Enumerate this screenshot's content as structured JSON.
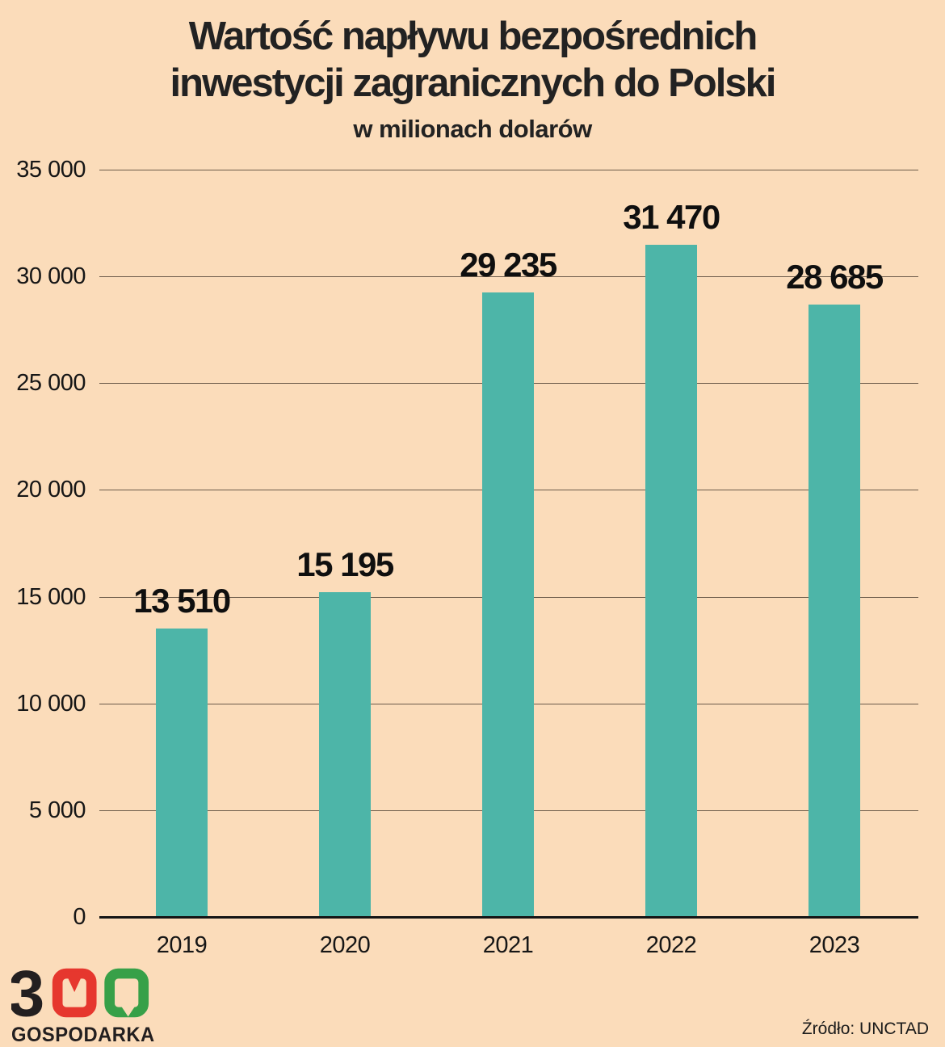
{
  "title": {
    "line1": "Wartość napływu bezpośrednich",
    "line2": "inwestycji zagranicznych do Polski",
    "subtitle": "w milionach dolarów"
  },
  "chart_data": {
    "type": "bar",
    "categories": [
      "2019",
      "2020",
      "2021",
      "2022",
      "2023"
    ],
    "values": [
      13510,
      15195,
      29235,
      31470,
      28685
    ],
    "value_labels": [
      "13 510",
      "15 195",
      "29 235",
      "31 470",
      "28 685"
    ],
    "title": "Wartość napływu bezpośrednich inwestycji zagranicznych do Polski",
    "subtitle": "w milionach dolarów",
    "xlabel": "",
    "ylabel": "",
    "ylim": [
      0,
      35000
    ],
    "ytick_step": 5000,
    "yticks": [
      {
        "value": 35000,
        "label": "35 000"
      },
      {
        "value": 30000,
        "label": "30 000"
      },
      {
        "value": 25000,
        "label": "25 000"
      },
      {
        "value": 20000,
        "label": "20 000"
      },
      {
        "value": 15000,
        "label": "15 000"
      },
      {
        "value": 10000,
        "label": "10 000"
      },
      {
        "value": 5000,
        "label": "5 000"
      },
      {
        "value": 0,
        "label": "0"
      }
    ],
    "grid": true,
    "legend": false,
    "bar_color": "#4db5a8"
  },
  "footer": {
    "source": "Źródło: UNCTAD",
    "logo": {
      "digit_3": "3",
      "wordmark": "GOSPODARKA",
      "color_black": "#231f20",
      "color_red": "#e6372e",
      "color_green": "#37a048"
    }
  },
  "colors": {
    "background": "#fbdcba",
    "bar": "#4db5a8",
    "grid": "#4f4336",
    "axis": "#151515",
    "text": "#1b1b1b"
  }
}
